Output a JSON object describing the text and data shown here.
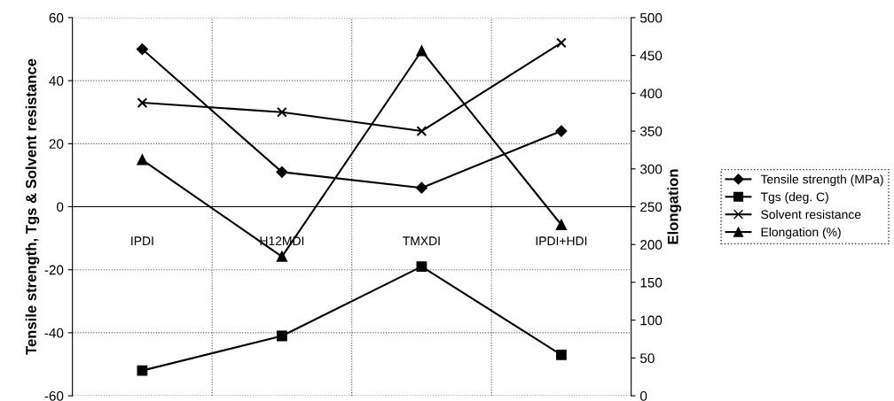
{
  "chart_data": {
    "type": "line",
    "ylabel": "Tensile strength, Tgs & Solvent resistance",
    "y2label": "Elongation",
    "categories": [
      "IPDI",
      "H12MDI",
      "TMXDI",
      "IPDI+HDI"
    ],
    "series": [
      {
        "name": "Tensile strength (MPa)",
        "color": "#000000",
        "marker": "diamond",
        "values": [
          50,
          11,
          6,
          24
        ]
      },
      {
        "name": "Tgs (deg. C)",
        "color": "#000000",
        "marker": "square",
        "values": [
          -52,
          -41,
          -19,
          -47
        ]
      },
      {
        "name": "Solvent resistance",
        "color": "#000000",
        "marker": "cross",
        "values": [
          33,
          30,
          24,
          52
        ]
      },
      {
        "name": "Elongation (%)",
        "color": "#000000",
        "marker": "triangle",
        "axis": "y2",
        "values": [
          312,
          184,
          456,
          226
        ]
      }
    ],
    "ylim": [
      -60,
      60
    ],
    "yticks": [
      -60,
      -40,
      -20,
      0,
      20,
      40,
      60
    ],
    "y2lim": [
      0,
      500
    ],
    "y2ticks": [
      0,
      50,
      100,
      150,
      200,
      250,
      300,
      350,
      400,
      450,
      500
    ],
    "grid": true,
    "legend": "right",
    "line_style": "solid"
  }
}
